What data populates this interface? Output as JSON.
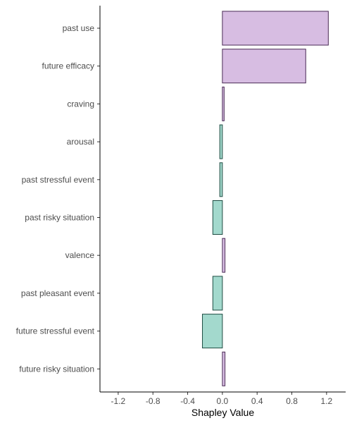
{
  "chart_data": {
    "type": "bar",
    "orientation": "horizontal",
    "categories": [
      "past use",
      "future efficacy",
      "craving",
      "arousal",
      "past stressful event",
      "past risky situation",
      "valence",
      "past pleasant event",
      "future stressful event",
      "future risky situation"
    ],
    "values": [
      1.22,
      0.96,
      0.02,
      -0.03,
      -0.03,
      -0.11,
      0.03,
      -0.11,
      -0.23,
      0.03
    ],
    "xlabel": "Shapley Value",
    "ylabel": "",
    "xlim": [
      -1.41,
      1.42
    ],
    "xticks": [
      -1.2,
      -0.8,
      -0.4,
      0,
      0.4,
      0.8,
      1.2
    ],
    "xtick_labels": [
      "-1.2",
      "-0.8",
      "-0.4",
      "0.0",
      "0.4",
      "0.8",
      "1.2"
    ],
    "grid": false,
    "colors": {
      "positive_fill": "#d7bde2",
      "positive_stroke": "#4a2a55",
      "negative_fill": "#a3d9cd",
      "negative_stroke": "#1f4d43",
      "axis": "#000000",
      "tick": "#333333"
    }
  }
}
